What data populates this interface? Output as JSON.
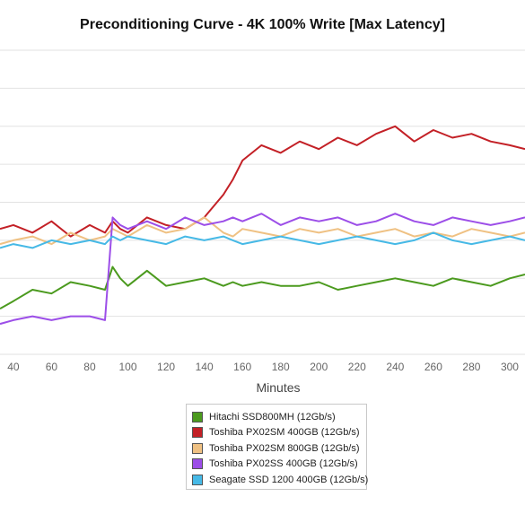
{
  "chart_data": {
    "type": "line",
    "title": "Preconditioning Curve - 4K 100% Write [Max Latency]",
    "xlabel": "Minutes",
    "ylabel": "",
    "xlim": [
      33,
      308
    ],
    "ylim": [
      0,
      8
    ],
    "x_ticks": [
      40,
      60,
      80,
      100,
      120,
      140,
      160,
      180,
      200,
      220,
      240,
      260,
      280,
      300
    ],
    "grid": true,
    "legend_position": "bottom-center",
    "x": [
      33,
      40,
      50,
      60,
      70,
      80,
      88,
      92,
      96,
      100,
      110,
      120,
      130,
      140,
      150,
      155,
      160,
      170,
      180,
      190,
      200,
      210,
      220,
      230,
      240,
      250,
      260,
      270,
      280,
      290,
      300,
      308
    ],
    "series": [
      {
        "name": "Hitachi SSD800MH (12Gb/s)",
        "color": "#4b9a1e",
        "values": [
          1.2,
          1.4,
          1.7,
          1.6,
          1.9,
          1.8,
          1.7,
          2.3,
          2.0,
          1.8,
          2.2,
          1.8,
          1.9,
          2.0,
          1.8,
          1.9,
          1.8,
          1.9,
          1.8,
          1.8,
          1.9,
          1.7,
          1.8,
          1.9,
          2.0,
          1.9,
          1.8,
          2.0,
          1.9,
          1.8,
          2.0,
          2.1
        ]
      },
      {
        "name": "Toshiba PX02SM 400GB (12Gb/s)",
        "color": "#c32026",
        "values": [
          3.3,
          3.4,
          3.2,
          3.5,
          3.1,
          3.4,
          3.2,
          3.5,
          3.3,
          3.2,
          3.6,
          3.4,
          3.3,
          3.6,
          4.2,
          4.6,
          5.1,
          5.5,
          5.3,
          5.6,
          5.4,
          5.7,
          5.5,
          5.8,
          6.0,
          5.6,
          5.9,
          5.7,
          5.8,
          5.6,
          5.5,
          5.4
        ]
      },
      {
        "name": "Toshiba PX02SM 800GB (12Gb/s)",
        "color": "#efc183",
        "values": [
          2.9,
          3.0,
          3.1,
          2.9,
          3.2,
          3.0,
          3.1,
          3.3,
          3.2,
          3.1,
          3.4,
          3.2,
          3.3,
          3.6,
          3.2,
          3.1,
          3.3,
          3.2,
          3.1,
          3.3,
          3.2,
          3.3,
          3.1,
          3.2,
          3.3,
          3.1,
          3.2,
          3.1,
          3.3,
          3.2,
          3.1,
          3.2
        ]
      },
      {
        "name": "Toshiba PX02SS 400GB (12Gb/s)",
        "color": "#9c4ee8",
        "values": [
          0.8,
          0.9,
          1.0,
          0.9,
          1.0,
          1.0,
          0.9,
          3.6,
          3.4,
          3.3,
          3.5,
          3.3,
          3.6,
          3.4,
          3.5,
          3.6,
          3.5,
          3.7,
          3.4,
          3.6,
          3.5,
          3.6,
          3.4,
          3.5,
          3.7,
          3.5,
          3.4,
          3.6,
          3.5,
          3.4,
          3.5,
          3.6
        ]
      },
      {
        "name": "Seagate SSD 1200 400GB (12Gb/s)",
        "color": "#46b9e6",
        "values": [
          2.8,
          2.9,
          2.8,
          3.0,
          2.9,
          3.0,
          2.9,
          3.1,
          3.0,
          3.1,
          3.0,
          2.9,
          3.1,
          3.0,
          3.1,
          3.0,
          2.9,
          3.0,
          3.1,
          3.0,
          2.9,
          3.0,
          3.1,
          3.0,
          2.9,
          3.0,
          3.2,
          3.0,
          2.9,
          3.0,
          3.1,
          3.0
        ]
      }
    ]
  }
}
